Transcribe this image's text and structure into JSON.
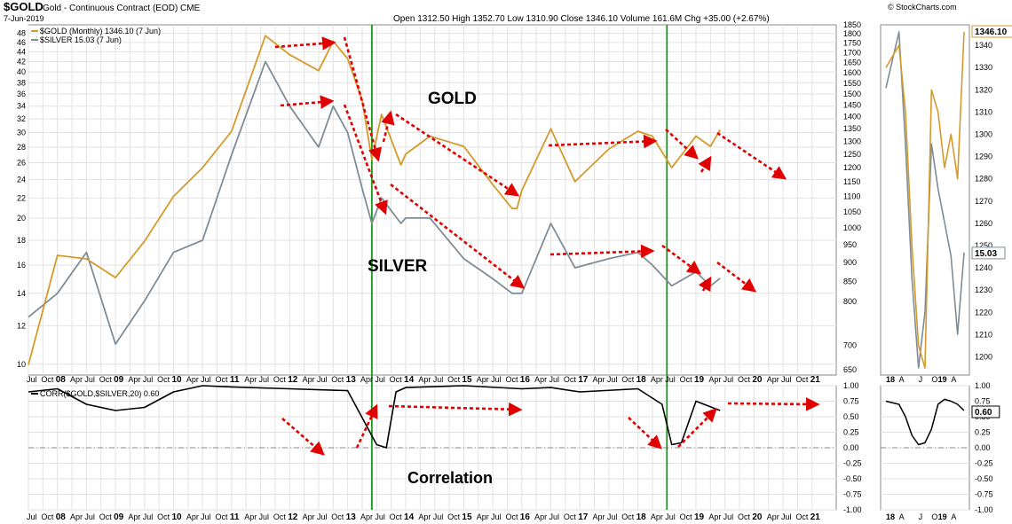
{
  "header": {
    "symbol": "$GOLD",
    "name": "Gold - Continuous Contract (EOD)",
    "exchange": "CME",
    "date": "7-Jun-2019",
    "watermark": "© StockCharts.com",
    "ohlc": "Open 1312.50  High 1352.70  Low 1310.90  Close 1346.10  Volume 161.6M  Chg +35.00 (+2.67%)"
  },
  "legend": {
    "gold": "$GOLD (Monthly) 1346.10 (7 Jun)",
    "silver": "$SILVER 15.03 (7 Jun)",
    "corr": "CORR($GOLD,$SILVER,20) 0.60"
  },
  "labels": {
    "gold": "GOLD",
    "silver": "SILVER",
    "correlation": "Correlation"
  },
  "colors": {
    "gold": "#d49a2a",
    "silver": "#7f8c96",
    "corr": "#000000",
    "arrow": "#e00000",
    "vline": "#1a9a1a",
    "label_blue": "#0a1fd6"
  },
  "chart_data": [
    {
      "type": "line",
      "title": "Gold - Continuous Contract (EOD)",
      "x": [
        "Jul 07",
        "Jan 08",
        "Jul 08",
        "Jan 09",
        "Jul 09",
        "Jan 10",
        "Jul 10",
        "Jan 11",
        "Aug 11",
        "Jan 12",
        "Jul 12",
        "Oct 12",
        "Jan 13",
        "Apr 13",
        "Jun 13",
        "Aug 13",
        "Dec 13",
        "Jan 14",
        "Jun 14",
        "Jan 15",
        "Jul 15",
        "Nov 15",
        "Dec 15",
        "Jan 16",
        "Jul 16",
        "Dec 16",
        "Jul 17",
        "Jan 18",
        "Apr 18",
        "Aug 18",
        "Jan 19",
        "Apr 19",
        "Jun 19"
      ],
      "series": [
        {
          "name": "$GOLD (Monthly) 1346.10 (7 Jun)",
          "axis": "right",
          "values": [
            660,
            920,
            910,
            860,
            960,
            1100,
            1200,
            1340,
            1790,
            1690,
            1610,
            1760,
            1670,
            1470,
            1230,
            1410,
            1210,
            1250,
            1320,
            1280,
            1140,
            1060,
            1060,
            1120,
            1350,
            1150,
            1270,
            1340,
            1320,
            1200,
            1320,
            1280,
            1346
          ]
        },
        {
          "name": "$SILVER 15.03 (7 Jun)",
          "axis": "left",
          "values": [
            12.5,
            14,
            17,
            11,
            13.5,
            17,
            18,
            27,
            42,
            34,
            28,
            34,
            30,
            23,
            19.5,
            22,
            19.5,
            20,
            20,
            16.5,
            15,
            14,
            14,
            14,
            19.5,
            15.8,
            16.5,
            17,
            16,
            14.5,
            15.5,
            14.5,
            15.03
          ]
        }
      ],
      "ylim_left": [
        9.5,
        50
      ],
      "ylim_right": [
        640,
        1850
      ],
      "left_ticks": [
        "10",
        "12",
        "14",
        "16",
        "18",
        "20",
        "22",
        "24",
        "26",
        "28",
        "30",
        "32",
        "34",
        "36",
        "38",
        "40",
        "42",
        "44",
        "46",
        "48"
      ],
      "right_ticks": [
        "650",
        "700",
        "800",
        "850",
        "900",
        "950",
        "1000",
        "1050",
        "1100",
        "1150",
        "1200",
        "1250",
        "1300",
        "1350",
        "1400",
        "1450",
        "1500",
        "1550",
        "1600",
        "1650",
        "1700",
        "1750",
        "1800",
        "1850"
      ],
      "x_ticks": [
        "Jul",
        "Oct",
        "08",
        "Apr",
        "Jul",
        "Oct",
        "09",
        "Apr",
        "Jul",
        "Oct",
        "10",
        "Apr",
        "Jul",
        "Oct",
        "11",
        "Apr",
        "Jul",
        "Oct",
        "12",
        "Apr",
        "Jul",
        "Oct",
        "13",
        "Apr",
        "Jul",
        "Oct",
        "14",
        "Apr",
        "Jul",
        "Oct",
        "15",
        "Apr",
        "Jul",
        "Oct",
        "16",
        "Apr",
        "Jul",
        "Oct",
        "17",
        "Apr",
        "Jul",
        "Oct",
        "18",
        "Apr",
        "Jul",
        "Oct",
        "19",
        "Apr",
        "Jul",
        "Oct",
        "20",
        "Apr",
        "Jul",
        "Oct",
        "21"
      ],
      "grid": true
    },
    {
      "type": "line",
      "x": [
        "Jul 07",
        "Jan 08",
        "Jul 08",
        "Jan 09",
        "Jul 09",
        "Jan 10",
        "Jul 10",
        "Jan 11",
        "Jan 12",
        "Jan 13",
        "Jul 13",
        "Sep 13",
        "Nov 13",
        "Jan 14",
        "Jan 15",
        "Jan 16",
        "Jul 16",
        "Jan 17",
        "Jan 18",
        "Jun 18",
        "Aug 18",
        "Oct 18",
        "Jan 19",
        "Jun 19"
      ],
      "series": [
        {
          "name": "CORR($GOLD,$SILVER,20) 0.60",
          "values": [
            0.9,
            0.95,
            0.7,
            0.6,
            0.65,
            0.9,
            1.0,
            0.98,
            0.95,
            0.92,
            0.05,
            0.0,
            0.9,
            0.97,
            1.0,
            0.95,
            0.97,
            0.9,
            0.95,
            0.7,
            0.05,
            0.08,
            0.75,
            0.6
          ]
        }
      ],
      "ylim": [
        -1,
        1
      ],
      "right_ticks": [
        "1.00",
        "0.75",
        "0.50",
        "0.25",
        "0.00",
        "-0.25",
        "-0.50",
        "-0.75",
        "-1.00"
      ],
      "grid": true
    },
    {
      "type": "line",
      "x": [
        "Jun 18",
        "Aug 18",
        "Sep 18",
        "Oct 18",
        "Nov 18",
        "Dec 18",
        "Jan 19",
        "Feb 19",
        "Mar 19",
        "Apr 19",
        "May 19",
        "Jun 19"
      ],
      "series": [
        {
          "name": "$GOLD",
          "values": [
            1330,
            1340,
            1310,
            1250,
            1205,
            1195,
            1320,
            1310,
            1285,
            1300,
            1280,
            1346
          ]
        },
        {
          "name": "$SILVER",
          "values": [
            16.5,
            17.0,
            16.0,
            14.8,
            14.0,
            14.5,
            16.0,
            15.6,
            15.3,
            15.0,
            14.3,
            15.03
          ]
        }
      ],
      "right_ticks": [
        "1340",
        "1330",
        "1320",
        "1310",
        "1300",
        "1290",
        "1280",
        "1270",
        "1260",
        "1250",
        "1240",
        "1230",
        "1220",
        "1210",
        "1200"
      ],
      "x_ticks": [
        "18",
        "A",
        "J",
        "O",
        "19",
        "A"
      ],
      "current_labels": [
        "1346.10",
        "15.03"
      ]
    },
    {
      "type": "line",
      "x": [
        "Jun 18",
        "Aug 18",
        "Sep 18",
        "Oct 18",
        "Nov 18",
        "Dec 18",
        "Jan 19",
        "Feb 19",
        "Mar 19",
        "Apr 19",
        "May 19",
        "Jun 19"
      ],
      "series": [
        {
          "name": "CORR",
          "values": [
            0.75,
            0.7,
            0.5,
            0.2,
            0.05,
            0.08,
            0.3,
            0.7,
            0.78,
            0.75,
            0.7,
            0.6
          ]
        }
      ],
      "right_ticks": [
        "1.00",
        "0.75",
        "0.50",
        "0.25",
        "0.00",
        "-0.25",
        "-0.50",
        "-0.75",
        "-1.00"
      ],
      "current_label": "0.60"
    }
  ]
}
